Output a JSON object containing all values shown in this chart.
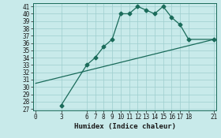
{
  "xlabel": "Humidex (Indice chaleur)",
  "bg_color": "#c8eaea",
  "grid_color": "#9ecece",
  "line_color": "#1a6b5a",
  "line1_x": [
    3,
    6,
    7,
    8,
    9,
    10,
    11,
    12,
    13,
    14,
    15,
    16,
    17,
    18,
    21
  ],
  "line1_y": [
    27.5,
    33,
    34,
    35.5,
    36.5,
    40,
    40,
    41,
    40.5,
    40,
    41,
    39.5,
    38.5,
    36.5,
    36.5
  ],
  "line2_x": [
    0,
    21
  ],
  "line2_y": [
    30.5,
    36.5
  ],
  "xlim": [
    -0.3,
    21.3
  ],
  "ylim": [
    26.8,
    41.5
  ],
  "xticks": [
    0,
    3,
    6,
    7,
    8,
    9,
    10,
    11,
    12,
    13,
    14,
    15,
    16,
    17,
    18,
    21
  ],
  "yticks": [
    27,
    28,
    29,
    30,
    31,
    32,
    33,
    34,
    35,
    36,
    37,
    38,
    39,
    40,
    41
  ],
  "marker": "D",
  "markersize": 2.5,
  "linewidth": 0.9,
  "label_fontsize": 6.5,
  "tick_fontsize": 5.5
}
